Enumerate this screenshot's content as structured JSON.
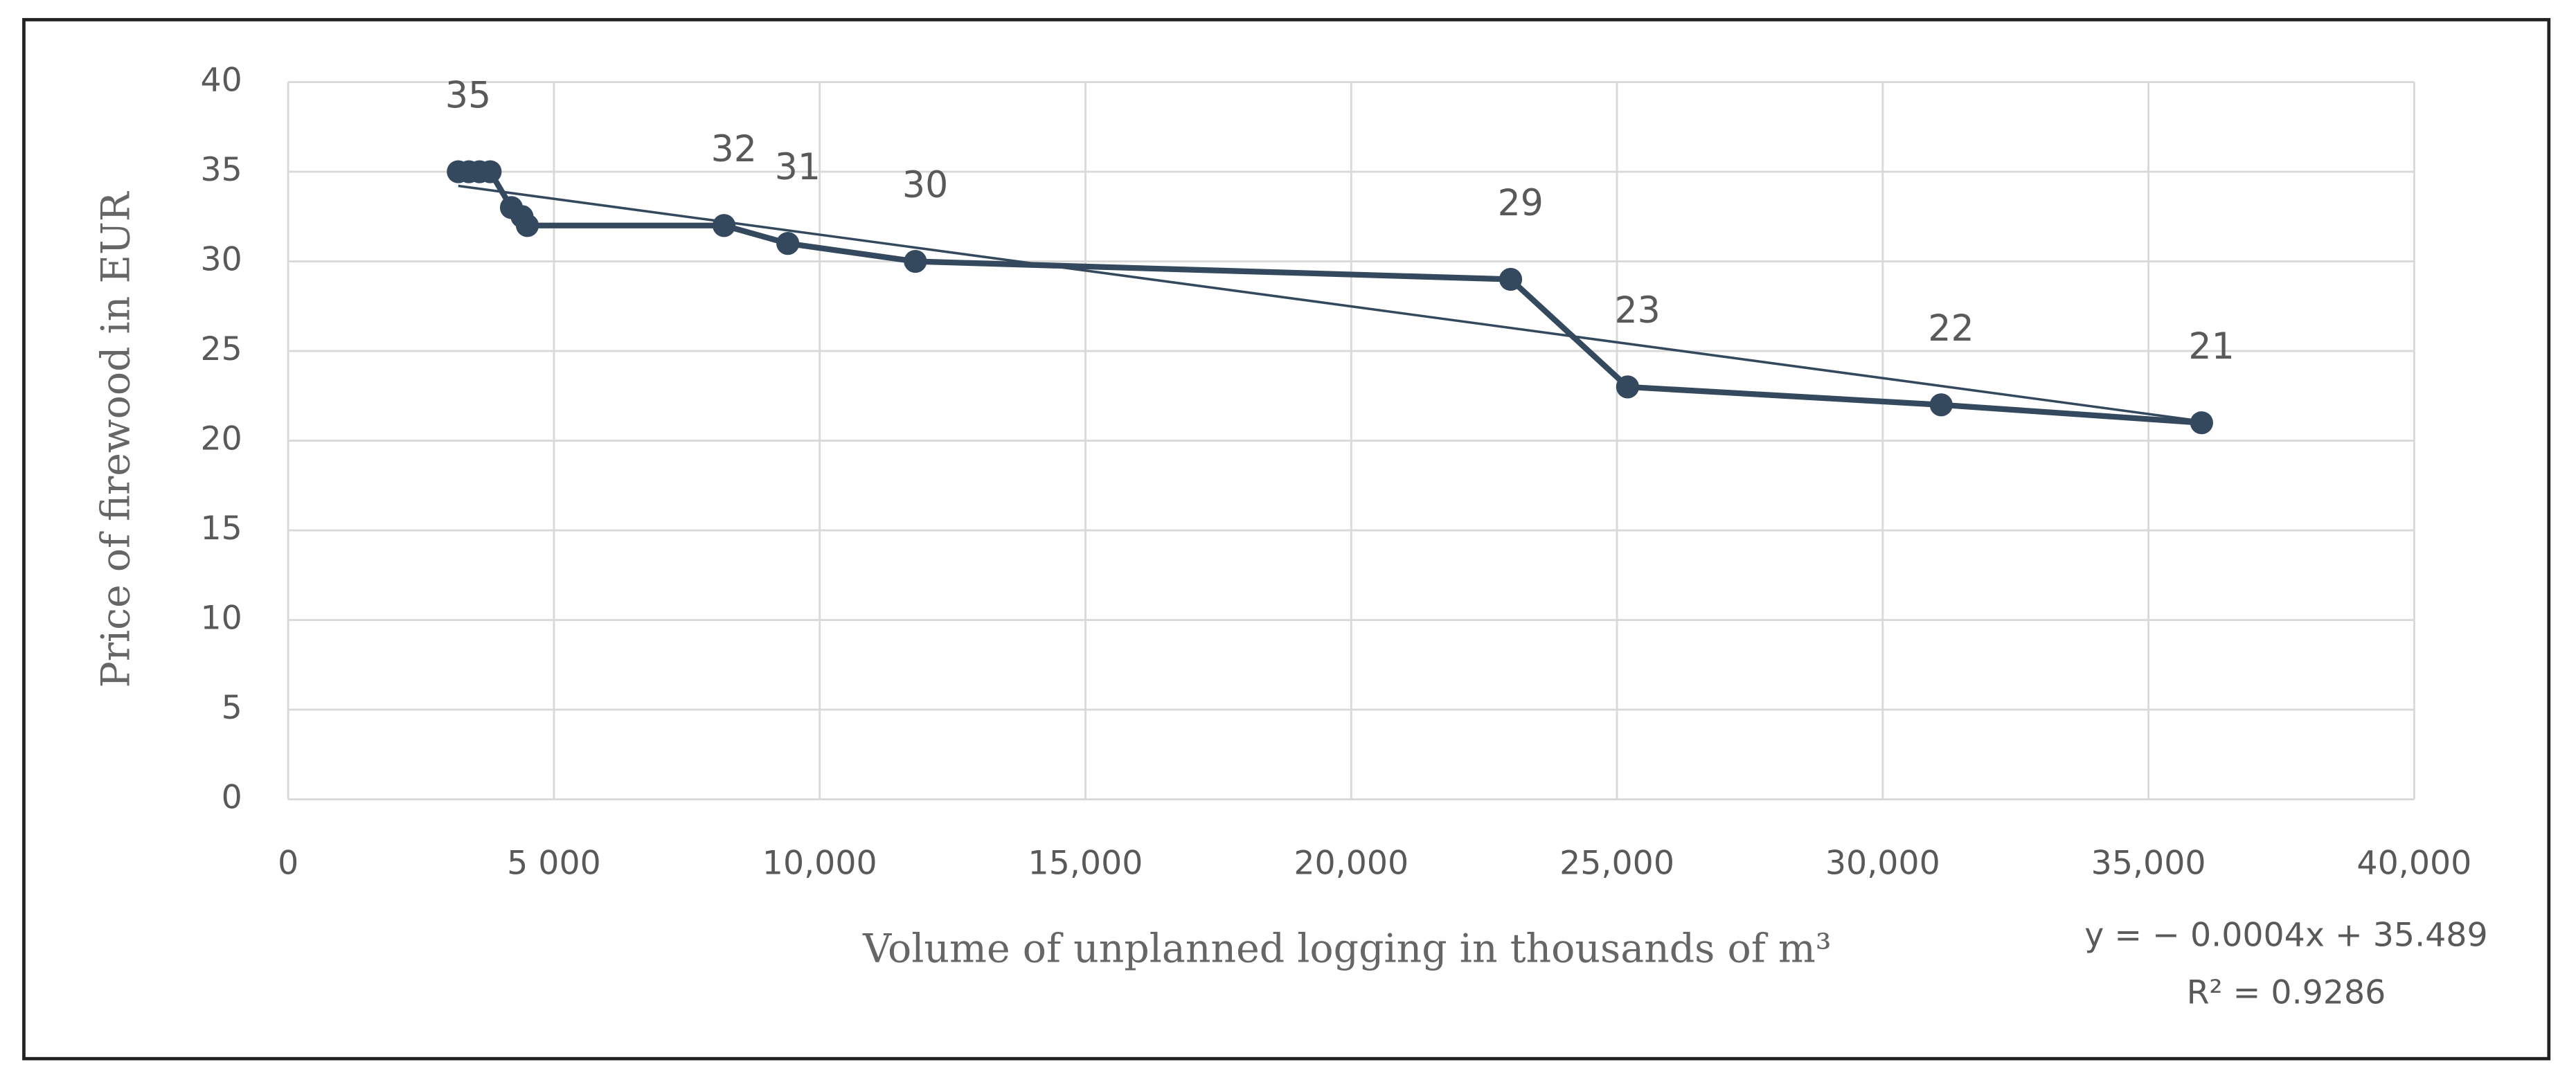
{
  "chart_data": {
    "type": "line",
    "x_label": "Volume of unplanned logging in thousands of m³",
    "y_label": "Price of firewood in EUR",
    "x": [
      3200,
      3400,
      3600,
      3800,
      4200,
      4400,
      4500,
      8200,
      9400,
      11800,
      23000,
      25200,
      31100,
      36000
    ],
    "series": [
      {
        "name": "Price of firewood",
        "color": "#34495e",
        "values": [
          35,
          35,
          35,
          35,
          33,
          32.5,
          32,
          32,
          31,
          30,
          29,
          23,
          22,
          21
        ],
        "value_labels": [
          "35",
          null,
          null,
          null,
          null,
          null,
          null,
          "32",
          "31",
          "30",
          "29",
          "23",
          "22",
          "21"
        ]
      }
    ],
    "trendline": {
      "slope": -0.0004,
      "intercept": 35.489,
      "equation": "y = − 0.0004x + 35.489",
      "r2": "R² = 0.9286"
    },
    "xlim": [
      0,
      40000
    ],
    "xticks": [
      0,
      {
        "value": 5000,
        "label": "5 000"
      },
      {
        "value": 10000,
        "label": "10,000"
      },
      {
        "value": 15000,
        "label": "15,000"
      },
      {
        "value": 20000,
        "label": "20,000"
      },
      {
        "value": 25000,
        "label": "25,000"
      },
      {
        "value": 30000,
        "label": "30,000"
      },
      {
        "value": 35000,
        "label": "35,000"
      },
      {
        "value": 40000,
        "label": "40,000"
      }
    ],
    "ylim": [
      0,
      40
    ],
    "yticks": [
      0,
      5,
      10,
      15,
      20,
      25,
      30,
      35,
      40
    ],
    "grid": true
  }
}
